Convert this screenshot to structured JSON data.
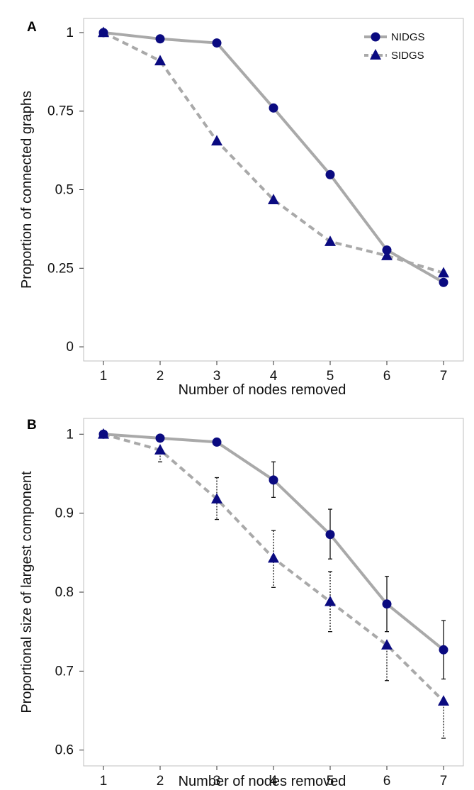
{
  "colors": {
    "line": "#a9a9a9",
    "marker": "#0a0a80",
    "errorbar": "#111111",
    "frame": "#bfbfbf"
  },
  "chart_data": [
    {
      "panel_label": "A",
      "type": "line",
      "xlabel": "Number of nodes removed",
      "ylabel": "Proportion of connected graphs",
      "x": [
        1,
        2,
        3,
        4,
        5,
        6,
        7
      ],
      "xlim": [
        0.65,
        7.35
      ],
      "ylim": [
        -0.045,
        1.045
      ],
      "yticks": [
        0,
        0.25,
        0.5,
        0.75,
        1
      ],
      "ytick_labels": [
        "0",
        "0.25",
        "0.5",
        "0.75",
        "1"
      ],
      "xtick_labels": [
        "1",
        "2",
        "3",
        "4",
        "5",
        "6",
        "7"
      ],
      "grid": false,
      "legend_position": "top-right",
      "series": [
        {
          "name": "NIDGS",
          "marker": "circle",
          "line_style": "solid",
          "values": [
            1.0,
            0.98,
            0.967,
            0.76,
            0.548,
            0.308,
            0.205
          ]
        },
        {
          "name": "SIDGS",
          "marker": "triangle",
          "line_style": "dashed",
          "values": [
            1.0,
            0.91,
            0.655,
            0.468,
            0.335,
            0.29,
            0.235
          ]
        }
      ]
    },
    {
      "panel_label": "B",
      "type": "line",
      "xlabel": "Number of nodes removed",
      "ylabel": "Proportional size of largest component",
      "x": [
        1,
        2,
        3,
        4,
        5,
        6,
        7
      ],
      "xlim": [
        0.65,
        7.35
      ],
      "ylim": [
        0.58,
        1.02
      ],
      "yticks": [
        0.6,
        0.7,
        0.8,
        0.9,
        1
      ],
      "ytick_labels": [
        "0.6",
        "0.7",
        "0.8",
        "0.9",
        "1"
      ],
      "xtick_labels": [
        "1",
        "2",
        "3",
        "4",
        "5",
        "6",
        "7"
      ],
      "grid": false,
      "series": [
        {
          "name": "NIDGS",
          "marker": "circle",
          "line_style": "solid",
          "values": [
            1.0,
            0.995,
            0.99,
            0.942,
            0.873,
            0.785,
            0.727
          ],
          "error_low": [
            null,
            null,
            null,
            0.92,
            0.842,
            0.75,
            0.69
          ],
          "error_high": [
            null,
            null,
            null,
            0.965,
            0.905,
            0.82,
            0.764
          ]
        },
        {
          "name": "SIDGS",
          "marker": "triangle",
          "line_style": "dashed",
          "values": [
            1.0,
            0.98,
            0.918,
            0.843,
            0.788,
            0.733,
            0.662
          ],
          "error_low": [
            null,
            0.965,
            0.892,
            0.806,
            0.75,
            0.688,
            0.615
          ],
          "error_high": [
            null,
            null,
            0.945,
            0.878,
            0.826,
            null,
            null
          ]
        }
      ]
    }
  ]
}
